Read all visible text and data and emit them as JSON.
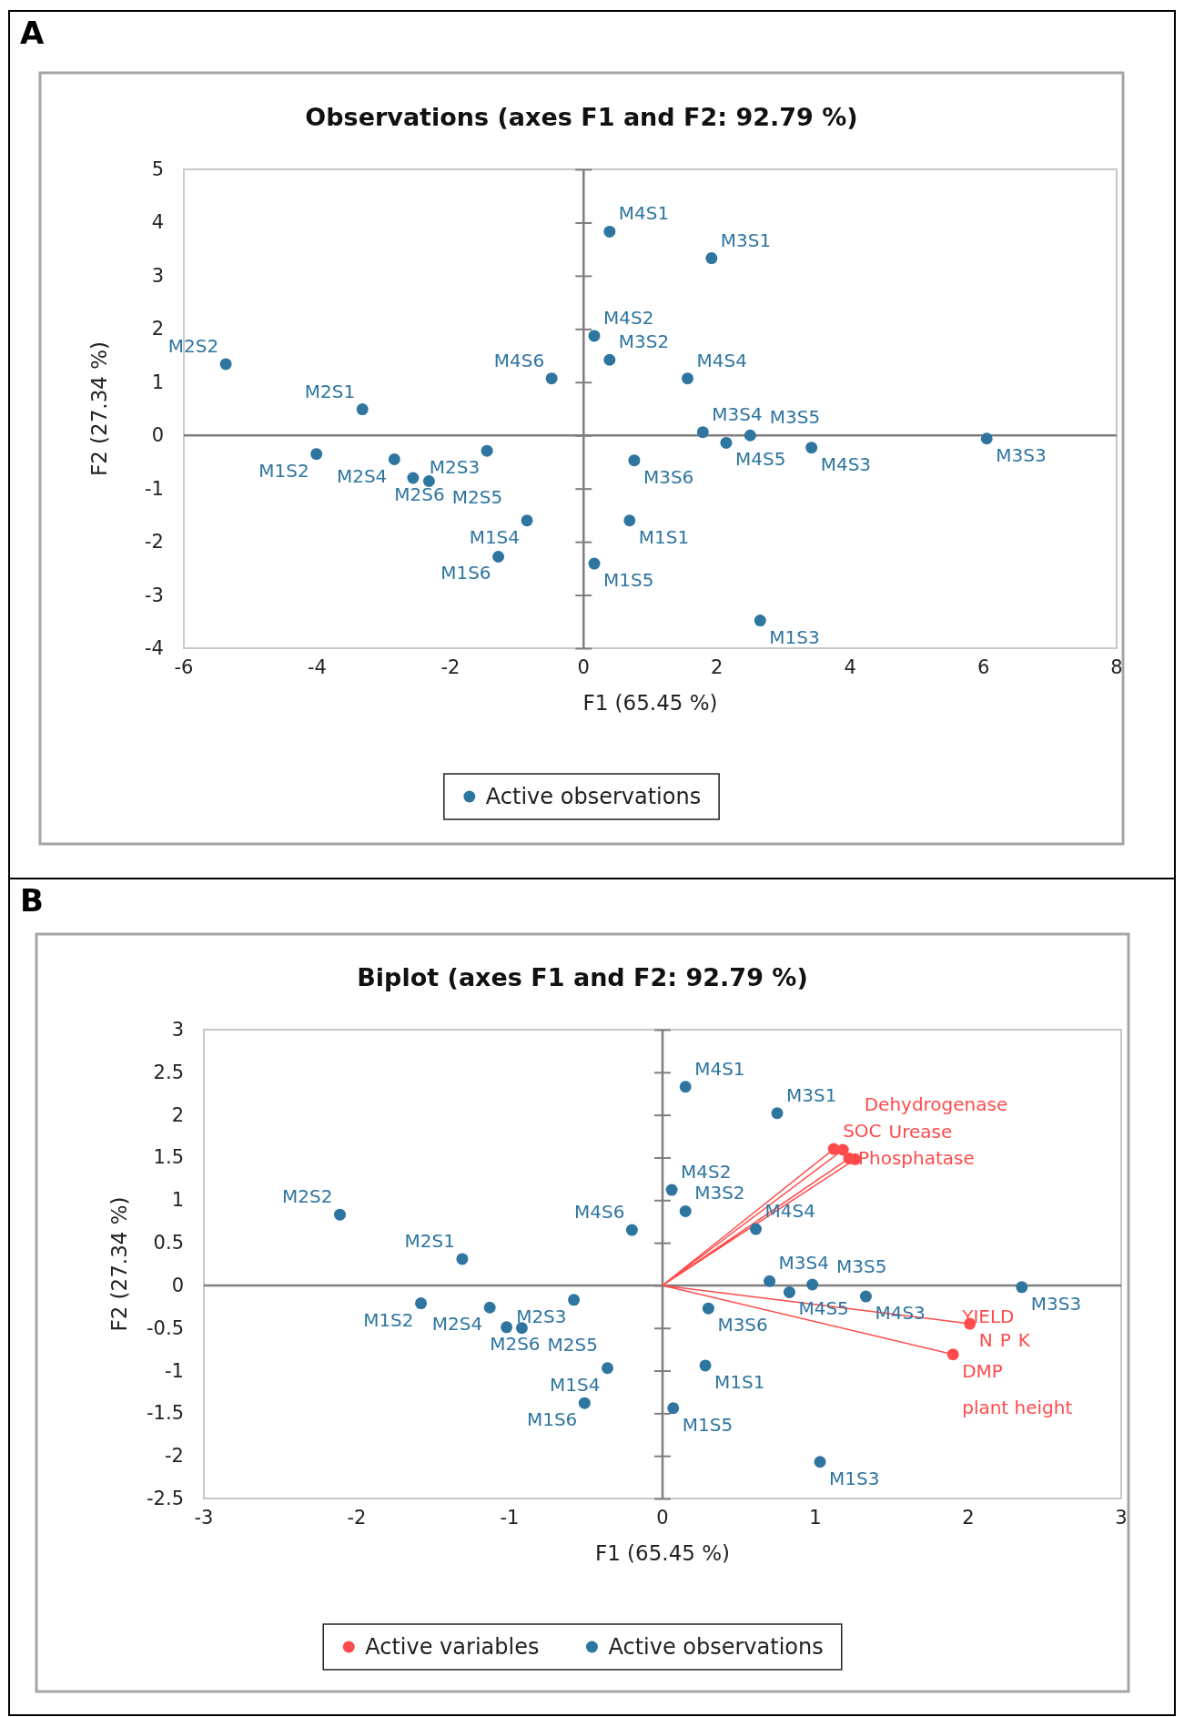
{
  "chart_data": [
    {
      "type": "scatter",
      "title": "Observations (axes F1 and F2: 92.79 %)",
      "xlabel": "F1 (65.45 %)",
      "ylabel": "F2 (27.34 %)",
      "xlim": [
        -6,
        8
      ],
      "xticks": [
        -6,
        -4,
        -2,
        0,
        2,
        4,
        6,
        8
      ],
      "ylim": [
        -4,
        5
      ],
      "yticks": [
        -4,
        -3,
        -2,
        -1,
        0,
        1,
        2,
        3,
        4,
        5
      ],
      "legend": "bottom",
      "marker": "circle",
      "series": [
        {
          "name": "Active observations",
          "color": "#2e75a0",
          "x": [
            0.39,
            1.92,
            0.16,
            0.39,
            1.56,
            -0.48,
            -5.37,
            -3.32,
            1.79,
            2.5,
            2.14,
            3.42,
            6.05,
            0.76,
            -4.01,
            -2.84,
            -2.56,
            -2.32,
            -1.45,
            -0.85,
            -1.28,
            0.69,
            0.16,
            2.65
          ],
          "values": [
            3.83,
            3.33,
            1.87,
            1.42,
            1.07,
            1.07,
            1.34,
            0.49,
            0.06,
            0.0,
            -0.14,
            -0.23,
            -0.06,
            -0.47,
            -0.35,
            -0.45,
            -0.8,
            -0.86,
            -0.29,
            -1.6,
            -2.28,
            -1.6,
            -2.41,
            -3.48
          ]
        }
      ],
      "annotations": [
        "A",
        {
          "text": "M4S1",
          "x": 0.39,
          "y": 3.83
        },
        {
          "text": "M3S1",
          "x": 1.92,
          "y": 3.33
        },
        {
          "text": "M4S2",
          "x": 0.16,
          "y": 1.87
        },
        {
          "text": "M3S2",
          "x": 0.39,
          "y": 1.42
        },
        {
          "text": "M4S4",
          "x": 1.56,
          "y": 1.07
        },
        {
          "text": "M4S6",
          "x": -0.48,
          "y": 1.07
        },
        {
          "text": "M2S2",
          "x": -5.37,
          "y": 1.34
        },
        {
          "text": "M2S1",
          "x": -3.32,
          "y": 0.49
        },
        {
          "text": "M3S4",
          "x": 1.79,
          "y": 0.06
        },
        {
          "text": "M3S5",
          "x": 2.5,
          "y": 0.0
        },
        {
          "text": "M4S5",
          "x": 2.14,
          "y": -0.14
        },
        {
          "text": "M4S3",
          "x": 3.42,
          "y": -0.23
        },
        {
          "text": "M3S3",
          "x": 6.05,
          "y": -0.06
        },
        {
          "text": "M3S6",
          "x": 0.76,
          "y": -0.47
        },
        {
          "text": "M1S2",
          "x": -4.01,
          "y": -0.35
        },
        {
          "text": "M2S4",
          "x": -2.84,
          "y": -0.45
        },
        {
          "text": "M2S6",
          "x": -2.56,
          "y": -0.8
        },
        {
          "text": "M2S5",
          "x": -2.32,
          "y": -0.86
        },
        {
          "text": "M2S3",
          "x": -1.45,
          "y": -0.29
        },
        {
          "text": "M1S4",
          "x": -0.85,
          "y": -1.6
        },
        {
          "text": "M1S6",
          "x": -1.28,
          "y": -2.28
        },
        {
          "text": "M1S1",
          "x": 0.69,
          "y": -1.6
        },
        {
          "text": "M1S5",
          "x": 0.16,
          "y": -2.41
        },
        {
          "text": "M1S3",
          "x": 2.65,
          "y": -3.48
        }
      ]
    },
    {
      "type": "scatter",
      "title": "Biplot (axes F1 and F2: 92.79 %)",
      "xlabel": "F1 (65.45 %)",
      "ylabel": "F2 (27.34 %)",
      "xlim": [
        -3,
        3
      ],
      "xticks": [
        -3,
        -2,
        -1,
        0,
        1,
        2,
        3
      ],
      "ylim": [
        -2.5,
        3
      ],
      "yticks": [
        -2.5,
        -2,
        -1.5,
        -1,
        -0.5,
        0,
        0.5,
        1,
        1.5,
        2,
        2.5,
        3
      ],
      "legend": "bottom",
      "marker": "circle",
      "series": [
        {
          "type": "line",
          "color": "#ff4b4b",
          "marker": "none",
          "x": [
            0,
            1.12,
            0,
            1.18,
            0,
            1.22,
            0,
            1.26,
            0,
            2.01,
            0,
            1.9
          ],
          "values": [
            0,
            1.6,
            0,
            1.59,
            0,
            1.49,
            0,
            1.48,
            0,
            -0.45,
            0,
            -0.81
          ]
        },
        {
          "name": "Active variables",
          "color": "#ff4b4b",
          "x": [
            1.12,
            1.18,
            1.22,
            1.26,
            2.01,
            1.9
          ],
          "values": [
            1.6,
            1.59,
            1.49,
            1.48,
            -0.45,
            -0.81
          ]
        },
        {
          "name": "Active observations",
          "color": "#2e75a0",
          "x": [
            0.15,
            0.75,
            0.06,
            0.15,
            0.61,
            -0.2,
            -2.11,
            -1.31,
            0.7,
            0.98,
            0.83,
            1.33,
            2.35,
            0.3,
            -1.58,
            -1.13,
            -1.02,
            -0.92,
            -0.58,
            -0.36,
            -0.51,
            0.28,
            0.07,
            1.03
          ],
          "values": [
            2.33,
            2.02,
            1.12,
            0.87,
            0.66,
            0.65,
            0.83,
            0.31,
            0.05,
            0.01,
            -0.08,
            -0.13,
            -0.02,
            -0.27,
            -0.21,
            -0.26,
            -0.49,
            -0.5,
            -0.17,
            -0.97,
            -1.38,
            -0.94,
            -1.44,
            -2.07
          ]
        }
      ],
      "annotations": [
        "B",
        {
          "text": "M4S1",
          "x": 0.15,
          "y": 2.33
        },
        {
          "text": "M3S1",
          "x": 0.75,
          "y": 2.02
        },
        {
          "text": "M4S2",
          "x": 0.06,
          "y": 1.12
        },
        {
          "text": "M3S2",
          "x": 0.15,
          "y": 0.87
        },
        {
          "text": "M4S4",
          "x": 0.61,
          "y": 0.66
        },
        {
          "text": "M4S6",
          "x": -0.2,
          "y": 0.65
        },
        {
          "text": "M2S2",
          "x": -2.11,
          "y": 0.83
        },
        {
          "text": "M2S1",
          "x": -1.31,
          "y": 0.31
        },
        {
          "text": "M3S4",
          "x": 0.7,
          "y": 0.05
        },
        {
          "text": "M3S5",
          "x": 0.98,
          "y": 0.01
        },
        {
          "text": "M4S5",
          "x": 0.83,
          "y": -0.08
        },
        {
          "text": "M4S3",
          "x": 1.33,
          "y": -0.13
        },
        {
          "text": "M3S3",
          "x": 2.35,
          "y": -0.02
        },
        {
          "text": "M3S6",
          "x": 0.3,
          "y": -0.27
        },
        {
          "text": "M1S2",
          "x": -1.58,
          "y": -0.21
        },
        {
          "text": "M2S4",
          "x": -1.13,
          "y": -0.26
        },
        {
          "text": "M2S6",
          "x": -1.02,
          "y": -0.49
        },
        {
          "text": "M2S5",
          "x": -0.92,
          "y": -0.5
        },
        {
          "text": "M2S3",
          "x": -0.58,
          "y": -0.17
        },
        {
          "text": "M1S4",
          "x": -0.36,
          "y": -0.97
        },
        {
          "text": "M1S6",
          "x": -0.51,
          "y": -1.38
        },
        {
          "text": "M1S1",
          "x": 0.28,
          "y": -0.94
        },
        {
          "text": "M1S5",
          "x": 0.07,
          "y": -1.44
        },
        {
          "text": "M1S3",
          "x": 1.03,
          "y": -2.07
        },
        {
          "text": "SOC",
          "x": 1.12,
          "y": 1.6
        },
        {
          "text": "Urease",
          "x": 1.18,
          "y": 1.59
        },
        {
          "text": "Phosphatase",
          "x": 1.22,
          "y": 1.49
        },
        {
          "text": "Dehydrogenase",
          "x": 1.26,
          "y": 1.48
        },
        {
          "text": "N",
          "x": 2.01,
          "y": -0.45
        },
        {
          "text": "P",
          "x": 2.01,
          "y": -0.45
        },
        {
          "text": "K",
          "x": 2.01,
          "y": -0.45
        },
        {
          "text": "DMP",
          "x": 1.9,
          "y": -0.81
        },
        {
          "text": "plant height",
          "x": 1.9,
          "y": -0.81
        },
        {
          "text": "YIELD",
          "x": 1.9,
          "y": -0.81
        }
      ]
    }
  ]
}
